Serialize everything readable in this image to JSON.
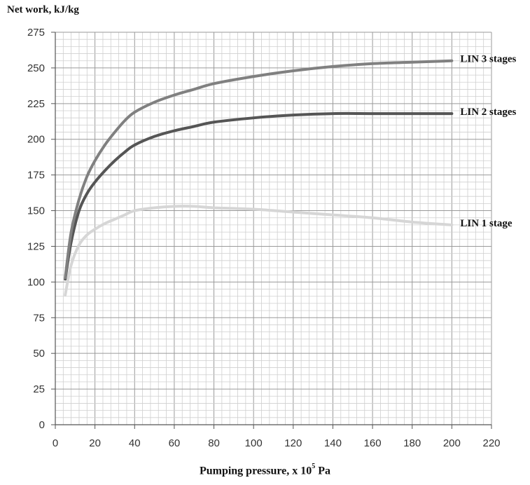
{
  "chart_data": {
    "type": "line",
    "ylabel": "Net work, kJ/kg",
    "xlabel": {
      "text": "Pumping pressure, x 10",
      "sup": "5",
      "unit": "Pa"
    },
    "xlim": [
      0,
      220
    ],
    "ylim": [
      0,
      275
    ],
    "xticks": [
      0,
      20,
      40,
      60,
      80,
      100,
      120,
      140,
      160,
      180,
      200,
      220
    ],
    "yticks": [
      0,
      25,
      50,
      75,
      100,
      125,
      150,
      175,
      200,
      225,
      250,
      275
    ],
    "grid": true,
    "series": [
      {
        "name": "LIN 3 stages",
        "color": "#808080",
        "x": [
          5,
          8,
          12,
          16,
          20,
          25,
          30,
          35,
          40,
          50,
          60,
          70,
          80,
          100,
          120,
          140,
          160,
          180,
          200
        ],
        "y": [
          103,
          135,
          158,
          174,
          185,
          196,
          205,
          213,
          219,
          226,
          231,
          235,
          239,
          244,
          248,
          251,
          253,
          254,
          255
        ]
      },
      {
        "name": "LIN 2 stages",
        "color": "#555555",
        "x": [
          5,
          8,
          12,
          16,
          20,
          25,
          30,
          35,
          40,
          50,
          60,
          70,
          80,
          100,
          120,
          140,
          160,
          180,
          200
        ],
        "y": [
          102,
          128,
          150,
          162,
          170,
          178,
          185,
          191,
          196,
          202,
          206,
          209,
          212,
          215,
          217,
          218,
          218,
          218,
          218
        ]
      },
      {
        "name": "LIN 1 stage",
        "color": "#d6d6d6",
        "x": [
          5,
          8,
          12,
          16,
          20,
          25,
          30,
          35,
          40,
          50,
          60,
          70,
          80,
          100,
          120,
          140,
          160,
          180,
          200
        ],
        "y": [
          91,
          112,
          126,
          133,
          137,
          141,
          144,
          147,
          150,
          152,
          153,
          153,
          152,
          151,
          149,
          147,
          145,
          142,
          140
        ]
      }
    ]
  }
}
